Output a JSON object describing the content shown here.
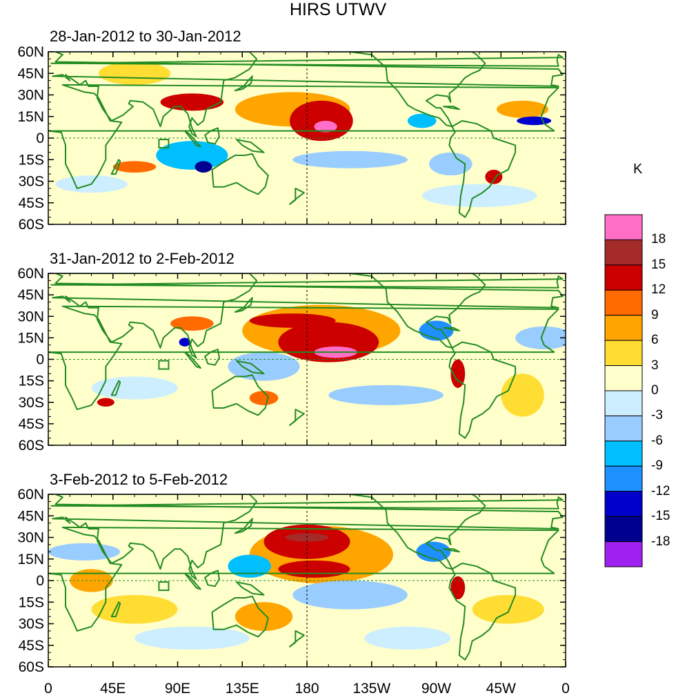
{
  "title": "HIRS UTWV",
  "panels": [
    {
      "id": "p1",
      "title": "28-Jan-2012 to 30-Jan-2012"
    },
    {
      "id": "p2",
      "title": "31-Jan-2012 to 2-Feb-2012"
    },
    {
      "id": "p3",
      "title": "3-Feb-2012 to 5-Feb-2012"
    }
  ],
  "lat_labels": [
    "60N",
    "45N",
    "30N",
    "15N",
    "0",
    "15S",
    "30S",
    "45S",
    "60S"
  ],
  "lat_values": [
    60,
    45,
    30,
    15,
    0,
    -15,
    -30,
    -45,
    -60
  ],
  "lon_labels": [
    "0",
    "45E",
    "90E",
    "135E",
    "180",
    "135W",
    "90W",
    "45W",
    "0"
  ],
  "lon_values": [
    0,
    45,
    90,
    135,
    180,
    225,
    270,
    315,
    360
  ],
  "colorbar": {
    "unit": "K",
    "labels": [
      "18",
      "15",
      "12",
      "9",
      "6",
      "3",
      "0",
      "-3",
      "-6",
      "-9",
      "-12",
      "-15",
      "-18"
    ],
    "colors": [
      "#ff6ec7",
      "#a52a2a",
      "#cd0000",
      "#ff6a00",
      "#ffa500",
      "#ffdd33",
      "#ffffcc",
      "#cceeff",
      "#99ccff",
      "#00bfff",
      "#1e90ff",
      "#0000cd",
      "#000090",
      "#a020f0"
    ]
  },
  "colors": {
    "coast": "#228b22",
    "frame": "#000000"
  },
  "features": {
    "p1": [
      {
        "lon": 100,
        "lat": 25,
        "rx": 22,
        "ry": 6,
        "v": 12
      },
      {
        "lon": 190,
        "lat": 12,
        "rx": 22,
        "ry": 14,
        "v": 12
      },
      {
        "lon": 193,
        "lat": 8,
        "rx": 8,
        "ry": 4,
        "v": 18
      },
      {
        "lon": 170,
        "lat": 20,
        "rx": 40,
        "ry": 12,
        "v": 6
      },
      {
        "lon": 330,
        "lat": 20,
        "rx": 18,
        "ry": 6,
        "v": 6
      },
      {
        "lon": 338,
        "lat": 12,
        "rx": 12,
        "ry": 3,
        "v": -15
      },
      {
        "lon": 108,
        "lat": -20,
        "rx": 6,
        "ry": 4,
        "v": -18
      },
      {
        "lon": 100,
        "lat": -12,
        "rx": 25,
        "ry": 10,
        "v": -9
      },
      {
        "lon": 310,
        "lat": -27,
        "rx": 6,
        "ry": 5,
        "v": 12
      },
      {
        "lon": 260,
        "lat": 12,
        "rx": 10,
        "ry": 5,
        "v": -9
      },
      {
        "lon": 60,
        "lat": -20,
        "rx": 15,
        "ry": 4,
        "v": 9
      },
      {
        "lon": 210,
        "lat": -15,
        "rx": 40,
        "ry": 6,
        "v": -6
      },
      {
        "lon": 30,
        "lat": -32,
        "rx": 25,
        "ry": 6,
        "v": -3
      },
      {
        "lon": 300,
        "lat": -40,
        "rx": 40,
        "ry": 8,
        "v": -3
      },
      {
        "lon": 60,
        "lat": 45,
        "rx": 25,
        "ry": 8,
        "v": 3
      },
      {
        "lon": 280,
        "lat": -18,
        "rx": 15,
        "ry": 8,
        "v": -6
      }
    ],
    "p2": [
      {
        "lon": 195,
        "lat": 12,
        "rx": 35,
        "ry": 14,
        "v": 12
      },
      {
        "lon": 200,
        "lat": 5,
        "rx": 15,
        "ry": 4,
        "v": 18
      },
      {
        "lon": 170,
        "lat": 27,
        "rx": 30,
        "ry": 5,
        "v": 12
      },
      {
        "lon": 190,
        "lat": 20,
        "rx": 55,
        "ry": 18,
        "v": 6
      },
      {
        "lon": 100,
        "lat": 25,
        "rx": 15,
        "ry": 5,
        "v": 9
      },
      {
        "lon": 95,
        "lat": 12,
        "rx": 4,
        "ry": 3,
        "v": -15
      },
      {
        "lon": 270,
        "lat": 20,
        "rx": 12,
        "ry": 7,
        "v": -12
      },
      {
        "lon": 285,
        "lat": -10,
        "rx": 5,
        "ry": 10,
        "v": 12
      },
      {
        "lon": 150,
        "lat": -27,
        "rx": 10,
        "ry": 5,
        "v": 9
      },
      {
        "lon": 40,
        "lat": -30,
        "rx": 6,
        "ry": 3,
        "v": 12
      },
      {
        "lon": 150,
        "lat": -5,
        "rx": 25,
        "ry": 10,
        "v": -6
      },
      {
        "lon": 235,
        "lat": -25,
        "rx": 40,
        "ry": 7,
        "v": -6
      },
      {
        "lon": 345,
        "lat": 15,
        "rx": 20,
        "ry": 8,
        "v": -6
      },
      {
        "lon": 330,
        "lat": -25,
        "rx": 15,
        "ry": 15,
        "v": 3
      },
      {
        "lon": 60,
        "lat": -20,
        "rx": 30,
        "ry": 8,
        "v": -3
      }
    ],
    "p3": [
      {
        "lon": 180,
        "lat": 27,
        "rx": 30,
        "ry": 12,
        "v": 12
      },
      {
        "lon": 185,
        "lat": 8,
        "rx": 25,
        "ry": 6,
        "v": 12
      },
      {
        "lon": 180,
        "lat": 30,
        "rx": 15,
        "ry": 3,
        "v": 15
      },
      {
        "lon": 190,
        "lat": 18,
        "rx": 50,
        "ry": 20,
        "v": 6
      },
      {
        "lon": 150,
        "lat": -25,
        "rx": 20,
        "ry": 10,
        "v": 6
      },
      {
        "lon": 285,
        "lat": -5,
        "rx": 5,
        "ry": 8,
        "v": 12
      },
      {
        "lon": 268,
        "lat": 20,
        "rx": 12,
        "ry": 7,
        "v": -12
      },
      {
        "lon": 140,
        "lat": 10,
        "rx": 15,
        "ry": 8,
        "v": -9
      },
      {
        "lon": 25,
        "lat": 20,
        "rx": 25,
        "ry": 6,
        "v": -6
      },
      {
        "lon": 30,
        "lat": 0,
        "rx": 15,
        "ry": 8,
        "v": 6
      },
      {
        "lon": 210,
        "lat": -10,
        "rx": 40,
        "ry": 10,
        "v": -6
      },
      {
        "lon": 320,
        "lat": -20,
        "rx": 25,
        "ry": 10,
        "v": 3
      },
      {
        "lon": 60,
        "lat": -20,
        "rx": 30,
        "ry": 10,
        "v": 3
      },
      {
        "lon": 100,
        "lat": -40,
        "rx": 40,
        "ry": 8,
        "v": -3
      },
      {
        "lon": 250,
        "lat": -40,
        "rx": 30,
        "ry": 8,
        "v": -3
      }
    ]
  }
}
